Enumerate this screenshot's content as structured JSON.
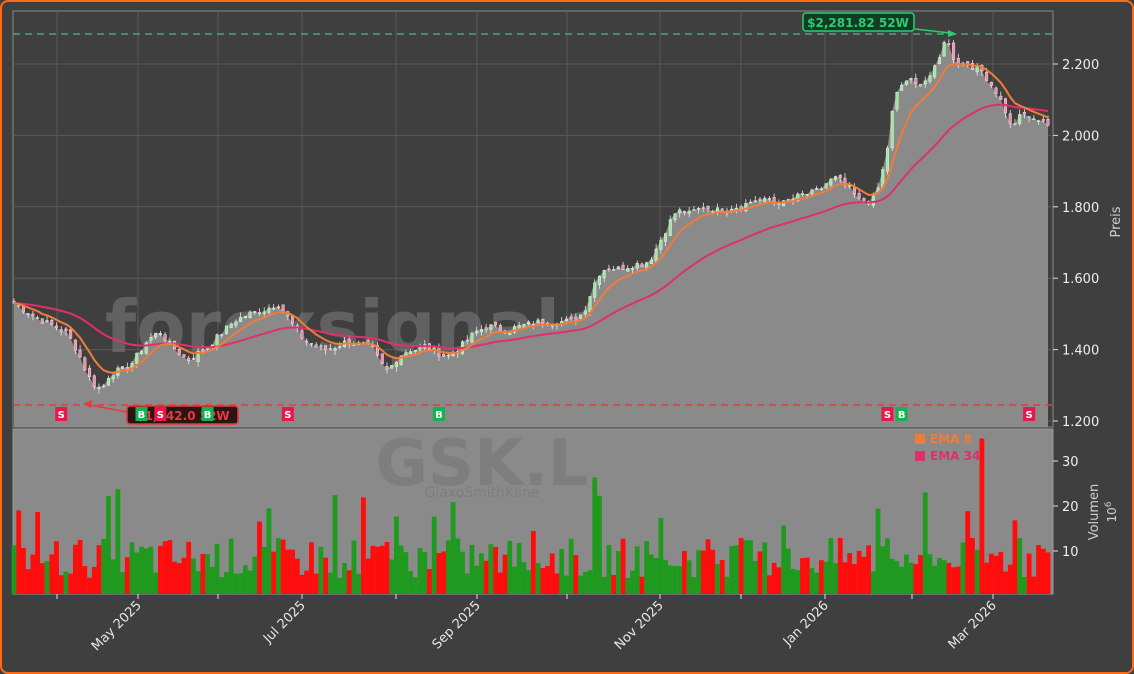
{
  "chart_data": {
    "type": "candlestick+line+bar",
    "ticker": "GSK.L",
    "company": "GlaxoSmithKline",
    "watermark": "forexsignale.trade",
    "price_panel": {
      "ylabel": "Preis",
      "yticks": [
        1200,
        1400,
        1600,
        1800,
        2000,
        2200
      ],
      "ytick_labels": [
        "1.200",
        "1.400",
        "1.600",
        "1.800",
        "2.000",
        "2.200"
      ],
      "ylim": [
        1180,
        2355
      ],
      "high_52w": {
        "value": 2281.82,
        "label": "$2,281.82 52W",
        "color": "#2ecc71"
      },
      "low_52w": {
        "value": 1242.0,
        "label": "$1,242.0 52W",
        "color": "#e8393e"
      },
      "close_approx": [
        1530,
        1515,
        1505,
        1490,
        1480,
        1470,
        1460,
        1450,
        1420,
        1380,
        1330,
        1300,
        1290,
        1330,
        1340,
        1345,
        1360,
        1390,
        1420,
        1440,
        1450,
        1420,
        1400,
        1380,
        1370,
        1390,
        1400,
        1420,
        1440,
        1460,
        1480,
        1490,
        1500,
        1505,
        1510,
        1520,
        1530,
        1500,
        1470,
        1440,
        1420,
        1410,
        1400,
        1400,
        1410,
        1420,
        1420,
        1415,
        1410,
        1400,
        1360,
        1340,
        1370,
        1390,
        1400,
        1400,
        1410,
        1400,
        1390,
        1380,
        1395,
        1410,
        1430,
        1450,
        1460,
        1465,
        1460,
        1455,
        1460,
        1465,
        1470,
        1475,
        1480,
        1480,
        1475,
        1480,
        1480,
        1490,
        1520,
        1580,
        1620,
        1630,
        1625,
        1630,
        1635,
        1640,
        1640,
        1660,
        1700,
        1740,
        1780,
        1790,
        1780,
        1790,
        1800,
        1795,
        1790,
        1795,
        1800,
        1800,
        1810,
        1820,
        1815,
        1820,
        1815,
        1810,
        1820,
        1830,
        1835,
        1840,
        1850,
        1870,
        1880,
        1870,
        1850,
        1820,
        1810,
        1820,
        1860,
        1950,
        2100,
        2140,
        2160,
        2140,
        2150,
        2170,
        2200,
        2280,
        2220,
        2200,
        2200,
        2190,
        2180,
        2150,
        2120,
        2080,
        2020,
        2050,
        2060,
        2040,
        2050,
        2030
      ],
      "ema8_color": "#f07c3a",
      "ema34_color": "#e0306a",
      "area_color": "#8a8a8a",
      "signals": [
        {
          "type": "S",
          "x_index": 10
        },
        {
          "type": "B",
          "x_index": 27
        },
        {
          "type": "S",
          "x_index": 31
        },
        {
          "type": "B",
          "x_index": 41
        },
        {
          "type": "S",
          "x_index": 58
        },
        {
          "type": "B",
          "x_index": 90
        },
        {
          "type": "S",
          "x_index": 185
        },
        {
          "type": "B",
          "x_index": 188
        },
        {
          "type": "S",
          "x_index": 215
        }
      ]
    },
    "volume_panel": {
      "ylabel": "Volumen",
      "unit": "10^6",
      "yticks": [
        10,
        20,
        30
      ],
      "ylim": [
        0,
        37
      ],
      "up_color": "#1f9a1f",
      "down_color": "#ff0c0c"
    },
    "legend": [
      {
        "label": "EMA 8",
        "color": "#f07c3a"
      },
      {
        "label": "EMA 34",
        "color": "#e0306a"
      }
    ],
    "x_tick_labels": [
      "May 2025",
      "Jul 2025",
      "Sep 2025",
      "Nov 2025",
      "Jan 2026",
      "Mar 2026"
    ],
    "x_tick_positions": [
      138,
      302,
      477,
      660,
      825,
      993
    ],
    "x_minor_ticks": [
      57,
      218,
      396,
      567,
      741,
      912
    ]
  },
  "labels": {
    "high52": "$2,281.82 52W",
    "low52": "$1,242.0 52W",
    "ylabel_price": "Preis",
    "ylabel_volume": "Volumen",
    "volume_unit": "10",
    "volume_unit_exp": "6",
    "legend_ema8": "EMA 8",
    "legend_ema34": "EMA 34",
    "watermark_site": "forexsignale.trade",
    "watermark_ticker": "GSK.L",
    "watermark_company": "GlaxoSmithKline"
  }
}
